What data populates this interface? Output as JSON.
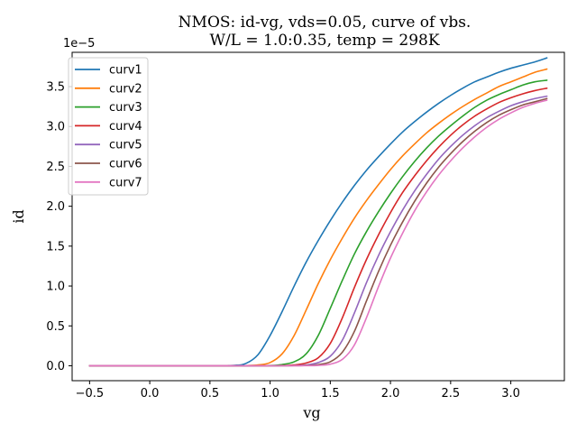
{
  "chart_data": {
    "type": "line",
    "title_line1": "NMOS: id-vg, vds=0.05, curve of vbs.",
    "title_line2": "W/L = 1.0:0.35, temp = 298K",
    "xlabel": "vg",
    "ylabel": "id",
    "y_offset_label": "1e−5",
    "xlim": [
      -0.645,
      3.445
    ],
    "ylim": [
      -1.87e-06,
      3.93e-05
    ],
    "x_ticks": [
      -0.5,
      0.0,
      0.5,
      1.0,
      1.5,
      2.0,
      2.5,
      3.0
    ],
    "x_tick_labels": [
      "−0.5",
      "0.0",
      "0.5",
      "1.0",
      "1.5",
      "2.0",
      "2.5",
      "3.0"
    ],
    "y_ticks": [
      0.0,
      5e-06,
      1e-05,
      1.5e-05,
      2e-05,
      2.5e-05,
      3e-05,
      3.5e-05
    ],
    "y_tick_labels": [
      "0.0",
      "0.5",
      "1.0",
      "1.5",
      "2.0",
      "2.5",
      "3.0",
      "3.5"
    ],
    "grid": false,
    "legend_position": "top-left",
    "x": [
      -0.5,
      0.0,
      0.5,
      0.7,
      0.8,
      0.9,
      1.0,
      1.1,
      1.2,
      1.3,
      1.4,
      1.5,
      1.6,
      1.7,
      1.8,
      1.9,
      2.0,
      2.1,
      2.2,
      2.3,
      2.4,
      2.5,
      2.6,
      2.7,
      2.8,
      2.9,
      3.0,
      3.1,
      3.2,
      3.3
    ],
    "series": [
      {
        "name": "curv1",
        "color": "#1f77b4",
        "values": [
          0,
          0,
          0,
          5e-08,
          3e-07,
          1.4e-06,
          3.8e-06,
          6.8e-06,
          1e-05,
          1.3e-05,
          1.57e-05,
          1.82e-05,
          2.05e-05,
          2.26e-05,
          2.45e-05,
          2.62e-05,
          2.78e-05,
          2.93e-05,
          3.06e-05,
          3.18e-05,
          3.29e-05,
          3.39e-05,
          3.48e-05,
          3.56e-05,
          3.62e-05,
          3.68e-05,
          3.73e-05,
          3.77e-05,
          3.81e-05,
          3.86e-05
        ]
      },
      {
        "name": "curv2",
        "color": "#ff7f0e",
        "values": [
          0,
          0,
          0,
          0,
          2e-08,
          1e-07,
          4e-07,
          1.5e-06,
          3.8e-06,
          7e-06,
          1.03e-05,
          1.33e-05,
          1.6e-05,
          1.85e-05,
          2.07e-05,
          2.27e-05,
          2.46e-05,
          2.63e-05,
          2.78e-05,
          2.92e-05,
          3.04e-05,
          3.15e-05,
          3.25e-05,
          3.34e-05,
          3.42e-05,
          3.5e-05,
          3.56e-05,
          3.62e-05,
          3.68e-05,
          3.72e-05
        ]
      },
      {
        "name": "curv3",
        "color": "#2ca02c",
        "values": [
          0,
          0,
          0,
          0,
          0,
          1e-08,
          3e-08,
          1.5e-07,
          5e-07,
          1.5e-06,
          3.8e-06,
          7.2e-06,
          1.07e-05,
          1.4e-05,
          1.68e-05,
          1.93e-05,
          2.16e-05,
          2.37e-05,
          2.56e-05,
          2.73e-05,
          2.88e-05,
          3.01e-05,
          3.13e-05,
          3.24e-05,
          3.33e-05,
          3.4e-05,
          3.46e-05,
          3.52e-05,
          3.56e-05,
          3.58e-05
        ]
      },
      {
        "name": "curv4",
        "color": "#d62728",
        "values": [
          0,
          0,
          0,
          0,
          0,
          0,
          1e-08,
          3e-08,
          1e-07,
          3.5e-07,
          1e-06,
          2.8e-06,
          6e-06,
          9.8e-06,
          1.33e-05,
          1.64e-05,
          1.92e-05,
          2.17e-05,
          2.38e-05,
          2.57e-05,
          2.74e-05,
          2.89e-05,
          3.02e-05,
          3.13e-05,
          3.22e-05,
          3.3e-05,
          3.36e-05,
          3.41e-05,
          3.45e-05,
          3.48e-05
        ]
      },
      {
        "name": "curv5",
        "color": "#9467bd",
        "values": [
          0,
          0,
          0,
          0,
          0,
          0,
          0,
          1e-08,
          3e-08,
          1e-07,
          4e-07,
          1.2e-06,
          3.2e-06,
          6.6e-06,
          1.04e-05,
          1.38e-05,
          1.68e-05,
          1.95e-05,
          2.19e-05,
          2.4e-05,
          2.59e-05,
          2.75e-05,
          2.89e-05,
          3.01e-05,
          3.11e-05,
          3.19e-05,
          3.26e-05,
          3.31e-05,
          3.35e-05,
          3.38e-05
        ]
      },
      {
        "name": "curv6",
        "color": "#8c564b",
        "values": [
          0,
          0,
          0,
          0,
          0,
          0,
          0,
          0,
          1e-08,
          4e-08,
          1.5e-07,
          5e-07,
          1.7e-06,
          4.3e-06,
          8.1e-06,
          1.18e-05,
          1.51e-05,
          1.8e-05,
          2.06e-05,
          2.29e-05,
          2.49e-05,
          2.66e-05,
          2.81e-05,
          2.94e-05,
          3.05e-05,
          3.14e-05,
          3.21e-05,
          3.27e-05,
          3.31e-05,
          3.35e-05
        ]
      },
      {
        "name": "curv7",
        "color": "#e377c2",
        "values": [
          0,
          0,
          0,
          0,
          0,
          0,
          0,
          0,
          0,
          1e-08,
          5e-08,
          2e-07,
          8e-07,
          2.6e-06,
          6e-06,
          9.9e-06,
          1.35e-05,
          1.66e-05,
          1.94e-05,
          2.18e-05,
          2.39e-05,
          2.57e-05,
          2.73e-05,
          2.87e-05,
          2.99e-05,
          3.09e-05,
          3.17e-05,
          3.24e-05,
          3.29e-05,
          3.33e-05
        ]
      }
    ]
  }
}
